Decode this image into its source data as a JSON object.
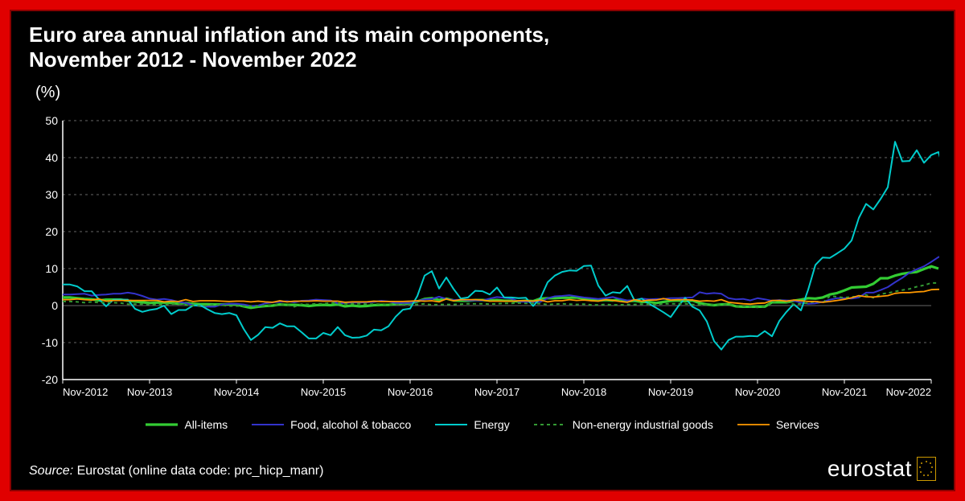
{
  "title": "Euro area annual inflation and its main components,\nNovember 2012 - November 2022",
  "y_unit": "(%)",
  "chart": {
    "type": "line",
    "background_color": "#000000",
    "grid_color": "#666666",
    "axis_text_color": "#ffffff",
    "tick_fontsize": 14,
    "title_fontsize": 26,
    "ylim": [
      -20,
      50
    ],
    "ytick_step": 10,
    "yticks": [
      -20,
      -10,
      0,
      10,
      20,
      30,
      40,
      50
    ],
    "x_ticks": [
      "Nov-2012",
      "Nov-2013",
      "Nov-2014",
      "Nov-2015",
      "Nov-2016",
      "Nov-2017",
      "Nov-2018",
      "Nov-2019",
      "Nov-2020",
      "Nov-2021",
      "Nov-2022"
    ],
    "n_points": 121,
    "series": {
      "all_items": {
        "label": "All-items",
        "color": "#33cc33",
        "stroke_width": 3.2,
        "dash": "none",
        "values": [
          2.2,
          2.2,
          2.0,
          1.8,
          1.7,
          1.4,
          1.6,
          1.6,
          1.6,
          1.3,
          1.1,
          0.9,
          0.7,
          0.8,
          0.8,
          0.7,
          0.5,
          0.7,
          0.5,
          0.4,
          0.4,
          0.3,
          0.3,
          0.4,
          0.3,
          -0.2,
          -0.6,
          -0.3,
          -0.1,
          0.0,
          0.3,
          0.2,
          0.2,
          0.1,
          -0.1,
          0.1,
          0.2,
          0.1,
          0.3,
          -0.2,
          0.0,
          -0.2,
          -0.1,
          0.1,
          0.2,
          0.2,
          0.4,
          0.5,
          0.6,
          1.1,
          1.8,
          2.0,
          1.5,
          1.9,
          1.4,
          1.3,
          1.3,
          1.5,
          1.5,
          1.4,
          1.5,
          1.3,
          1.3,
          1.1,
          1.3,
          1.2,
          1.9,
          2.0,
          2.0,
          2.1,
          2.1,
          2.2,
          1.9,
          1.5,
          1.4,
          1.5,
          1.4,
          1.7,
          1.2,
          1.3,
          1.0,
          1.0,
          0.7,
          1.0,
          1.3,
          1.4,
          1.2,
          1.4,
          0.7,
          0.3,
          0.1,
          0.3,
          0.4,
          -0.2,
          -0.3,
          -0.3,
          -0.3,
          -0.3,
          0.9,
          0.9,
          0.9,
          1.3,
          1.6,
          2.0,
          1.9,
          2.2,
          3.0,
          3.4,
          4.1,
          4.9,
          5.0,
          5.1,
          5.9,
          7.4,
          7.4,
          8.1,
          8.6,
          8.9,
          9.1,
          9.9,
          10.6,
          10.0
        ]
      },
      "food": {
        "label": "Food, alcohol & tobacco",
        "color": "#3333cc",
        "stroke_width": 2.0,
        "dash": "none",
        "values": [
          3.0,
          3.0,
          3.1,
          3.2,
          2.7,
          2.9,
          3.0,
          3.2,
          3.2,
          3.5,
          3.2,
          2.6,
          1.9,
          1.6,
          1.8,
          1.5,
          1.0,
          0.7,
          0.1,
          -0.2,
          -0.3,
          -0.3,
          0.3,
          0.5,
          0.5,
          0.3,
          -0.1,
          0.0,
          0.6,
          0.9,
          1.0,
          1.2,
          0.9,
          1.3,
          1.4,
          1.6,
          1.5,
          1.4,
          0.6,
          0.7,
          0.8,
          0.8,
          0.9,
          1.0,
          1.3,
          1.1,
          0.7,
          0.7,
          0.7,
          1.2,
          1.7,
          1.8,
          2.4,
          1.8,
          1.5,
          1.6,
          1.4,
          1.4,
          1.4,
          1.9,
          2.3,
          2.1,
          1.9,
          1.1,
          1.0,
          1.0,
          1.0,
          2.0,
          2.5,
          2.6,
          2.8,
          2.5,
          2.2,
          2.0,
          1.8,
          2.0,
          2.3,
          1.8,
          1.4,
          1.5,
          1.9,
          1.7,
          1.8,
          1.8,
          2.0,
          2.0,
          2.1,
          2.2,
          3.6,
          3.2,
          3.4,
          3.2,
          2.0,
          1.7,
          1.8,
          1.4,
          2.0,
          1.7,
          1.3,
          1.5,
          1.4,
          1.3,
          0.8,
          0.5,
          0.6,
          1.0,
          1.6,
          2.0,
          2.0,
          1.9,
          2.2,
          3.5,
          3.5,
          4.2,
          5.0,
          6.3,
          7.5,
          8.9,
          9.8,
          10.6,
          11.8,
          13.1,
          13.6
        ]
      },
      "energy": {
        "label": "Energy",
        "color": "#00cccc",
        "stroke_width": 2.0,
        "dash": "none",
        "values": [
          5.7,
          5.7,
          5.2,
          3.9,
          3.9,
          1.7,
          -0.2,
          1.6,
          1.6,
          1.6,
          -0.9,
          -1.7,
          -1.2,
          -0.9,
          0.0,
          -2.3,
          -1.2,
          -1.2,
          0.0,
          0.1,
          -1.0,
          -2.0,
          -2.3,
          -2.0,
          -2.6,
          -6.3,
          -9.3,
          -7.9,
          -5.8,
          -6.0,
          -4.8,
          -5.6,
          -5.6,
          -7.2,
          -8.9,
          -8.9,
          -7.4,
          -8.0,
          -5.8,
          -8.0,
          -8.7,
          -8.6,
          -8.1,
          -6.5,
          -6.7,
          -5.6,
          -3.0,
          -1.1,
          -0.8,
          2.6,
          8.1,
          9.3,
          4.6,
          7.6,
          4.5,
          1.9,
          2.2,
          4.0,
          3.9,
          3.0,
          4.9,
          2.2,
          2.2,
          2.0,
          2.1,
          -0.1,
          2.0,
          6.3,
          8.1,
          9.1,
          9.5,
          9.4,
          10.7,
          10.8,
          5.4,
          2.7,
          3.6,
          3.4,
          5.3,
          1.4,
          1.9,
          0.5,
          -0.6,
          -1.8,
          -3.1,
          -0.3,
          2.1,
          -0.3,
          -1.3,
          -4.3,
          -9.6,
          -11.9,
          -9.3,
          -8.4,
          -8.4,
          -8.2,
          -8.3,
          -6.9,
          -8.3,
          -4.2,
          -1.7,
          0.4,
          -1.3,
          4.3,
          11.0,
          13.0,
          12.9,
          14.1,
          15.4,
          17.6,
          23.7,
          27.5,
          26.0,
          28.8,
          32.0,
          44.3,
          39.0,
          39.1,
          42.0,
          38.6,
          40.7,
          41.5,
          34.9
        ]
      },
      "non_energy": {
        "label": "Non-energy industrial goods",
        "color": "#339933",
        "stroke_width": 2.0,
        "dash": "4 4",
        "values": [
          1.1,
          1.1,
          1.0,
          0.8,
          1.0,
          0.8,
          0.8,
          0.8,
          0.7,
          0.4,
          0.4,
          0.4,
          0.3,
          0.2,
          0.3,
          0.4,
          0.5,
          0.1,
          0.0,
          -0.1,
          0.0,
          0.3,
          0.1,
          -0.1,
          -0.1,
          -0.1,
          -0.1,
          -0.1,
          0.0,
          0.1,
          0.3,
          0.2,
          -0.3,
          0.4,
          0.3,
          0.5,
          0.5,
          0.7,
          0.7,
          0.5,
          0.5,
          0.5,
          0.4,
          0.4,
          0.4,
          0.3,
          0.3,
          0.3,
          0.3,
          0.3,
          0.5,
          0.2,
          0.3,
          0.3,
          0.3,
          0.4,
          0.5,
          0.5,
          0.5,
          0.4,
          0.5,
          0.6,
          0.6,
          0.7,
          0.6,
          0.6,
          0.5,
          0.3,
          0.4,
          0.5,
          0.4,
          0.3,
          0.4,
          0.2,
          0.2,
          0.3,
          0.2,
          0.2,
          0.3,
          0.3,
          0.4,
          0.4,
          0.3,
          0.5,
          0.5,
          0.5,
          0.5,
          0.3,
          0.2,
          0.2,
          0.2,
          0.2,
          0.4,
          -0.1,
          -0.2,
          -0.3,
          -0.5,
          -0.3,
          0.9,
          1.5,
          1.0,
          0.3,
          0.5,
          0.7,
          1.2,
          0.7,
          2.6,
          2.4,
          2.1,
          2.4,
          2.4,
          2.9,
          2.1,
          3.1,
          3.4,
          3.8,
          4.2,
          4.5,
          5.1,
          5.5,
          6.1,
          6.1
        ]
      },
      "services": {
        "label": "Services",
        "color": "#ff9900",
        "stroke_width": 1.8,
        "dash": "none",
        "values": [
          1.6,
          1.6,
          1.8,
          1.6,
          1.5,
          1.8,
          1.2,
          1.4,
          1.4,
          1.4,
          1.4,
          1.4,
          1.4,
          1.4,
          1.0,
          1.2,
          1.1,
          1.6,
          1.1,
          1.3,
          1.3,
          1.3,
          1.2,
          1.1,
          1.2,
          1.2,
          1.0,
          1.2,
          1.0,
          0.9,
          1.3,
          1.0,
          1.2,
          1.2,
          1.2,
          1.3,
          1.2,
          1.2,
          1.2,
          0.9,
          1.0,
          1.0,
          1.0,
          1.2,
          1.1,
          1.1,
          1.1,
          1.1,
          1.2,
          1.3,
          1.2,
          1.3,
          1.0,
          1.8,
          1.3,
          1.6,
          1.6,
          1.6,
          1.5,
          1.2,
          1.2,
          1.2,
          1.2,
          1.3,
          1.3,
          1.2,
          1.5,
          1.0,
          1.3,
          1.3,
          1.6,
          1.4,
          1.5,
          1.3,
          1.2,
          1.6,
          1.4,
          1.1,
          0.9,
          1.6,
          1.2,
          1.5,
          1.5,
          1.9,
          1.5,
          1.6,
          1.6,
          1.5,
          1.2,
          1.3,
          1.2,
          1.6,
          0.9,
          0.7,
          0.5,
          0.4,
          0.6,
          0.7,
          1.4,
          1.4,
          1.2,
          1.5,
          1.3,
          1.1,
          1.1,
          0.9,
          1.1,
          1.4,
          1.7,
          2.1,
          2.7,
          2.4,
          2.3,
          2.5,
          2.7,
          3.3,
          3.5,
          3.5,
          3.7,
          3.8,
          4.3,
          4.4,
          4.2
        ]
      }
    }
  },
  "legend_order": [
    "all_items",
    "food",
    "energy",
    "non_energy",
    "services"
  ],
  "source": {
    "label": "Source:",
    "text": " Eurostat (online data code: prc_hicp_manr)"
  },
  "logo": {
    "text": "eurostat"
  }
}
